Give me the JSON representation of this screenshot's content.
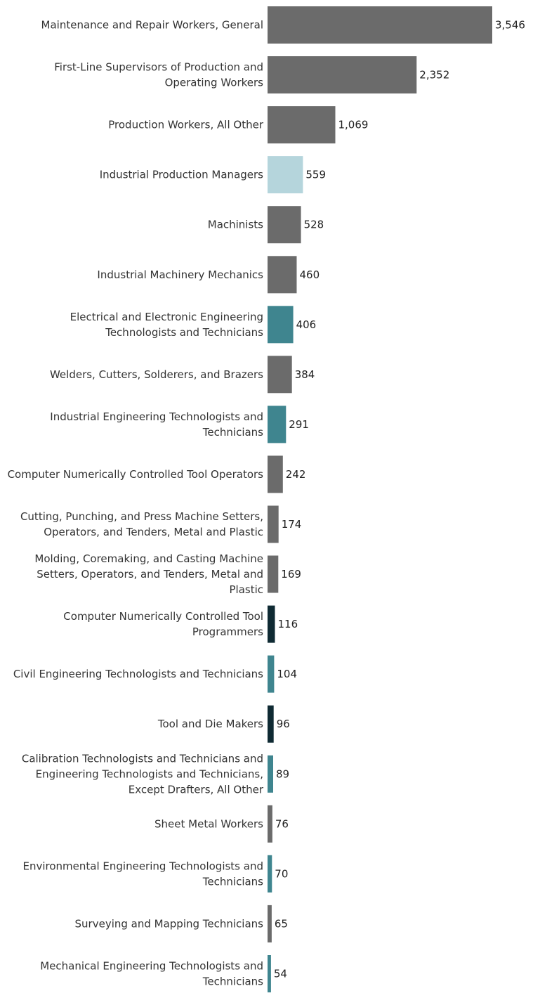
{
  "chart_data": {
    "type": "bar",
    "orientation": "horizontal",
    "title": "",
    "xlabel": "",
    "ylabel": "",
    "grid": false,
    "legend": "none",
    "xlim": [
      0,
      3546
    ],
    "categories": [
      "Maintenance and Repair Workers, General",
      "First-Line Supervisors of Production and Operating Workers",
      "Production Workers, All Other",
      "Industrial Production Managers",
      "Machinists",
      "Industrial Machinery Mechanics",
      "Electrical and Electronic Engineering Technologists and Technicians",
      "Welders, Cutters, Solderers, and Brazers",
      "Industrial Engineering Technologists and Technicians",
      "Computer Numerically Controlled Tool Operators",
      "Cutting, Punching, and Press Machine Setters, Operators, and Tenders, Metal and Plastic",
      "Molding, Coremaking, and Casting Machine Setters, Operators, and Tenders, Metal and Plastic",
      "Computer Numerically Controlled Tool Programmers",
      "Civil Engineering Technologists and Technicians",
      "Tool and Die Makers",
      "Calibration Technologists and Technicians and Engineering Technologists and Technicians, Except Drafters, All Other",
      "Sheet Metal Workers",
      "Environmental Engineering Technologists and Technicians",
      "Surveying and Mapping Technicians",
      "Mechanical Engineering Technologists and Technicians"
    ],
    "label_lines": [
      [
        "Maintenance and Repair Workers, General"
      ],
      [
        "First-Line Supervisors of Production and",
        "Operating Workers"
      ],
      [
        "Production Workers, All Other"
      ],
      [
        "Industrial Production Managers"
      ],
      [
        "Machinists"
      ],
      [
        "Industrial Machinery Mechanics"
      ],
      [
        "Electrical and Electronic Engineering",
        "Technologists and Technicians"
      ],
      [
        "Welders, Cutters, Solderers, and Brazers"
      ],
      [
        "Industrial Engineering Technologists and",
        "Technicians"
      ],
      [
        "Computer Numerically Controlled Tool Operators"
      ],
      [
        "Cutting, Punching, and Press Machine Setters,",
        "Operators, and Tenders, Metal and Plastic"
      ],
      [
        "Molding, Coremaking, and Casting Machine",
        "Setters, Operators, and Tenders, Metal and",
        "Plastic"
      ],
      [
        "Computer Numerically Controlled Tool",
        "Programmers"
      ],
      [
        "Civil Engineering Technologists and Technicians"
      ],
      [
        "Tool and Die Makers"
      ],
      [
        "Calibration Technologists and Technicians and",
        "Engineering Technologists and Technicians,",
        "Except Drafters, All Other"
      ],
      [
        "Sheet Metal Workers"
      ],
      [
        "Environmental Engineering Technologists and",
        "Technicians"
      ],
      [
        "Surveying and Mapping Technicians"
      ],
      [
        "Mechanical Engineering Technologists and",
        "Technicians"
      ]
    ],
    "values": [
      3546,
      2352,
      1069,
      559,
      528,
      460,
      406,
      384,
      291,
      242,
      174,
      169,
      116,
      104,
      96,
      89,
      76,
      70,
      65,
      54
    ],
    "value_labels": [
      "3,546",
      "2,352",
      "1,069",
      "559",
      "528",
      "460",
      "406",
      "384",
      "291",
      "242",
      "174",
      "169",
      "116",
      "104",
      "96",
      "89",
      "76",
      "70",
      "65",
      "54"
    ],
    "colors": [
      "#6b6b6b",
      "#6b6b6b",
      "#6b6b6b",
      "#b5d5dc",
      "#6b6b6b",
      "#6b6b6b",
      "#3f858f",
      "#6b6b6b",
      "#3f858f",
      "#6b6b6b",
      "#6b6b6b",
      "#6b6b6b",
      "#0f2a33",
      "#3f858f",
      "#0f2a33",
      "#3f858f",
      "#6b6b6b",
      "#3f858f",
      "#6b6b6b",
      "#3f858f"
    ]
  }
}
